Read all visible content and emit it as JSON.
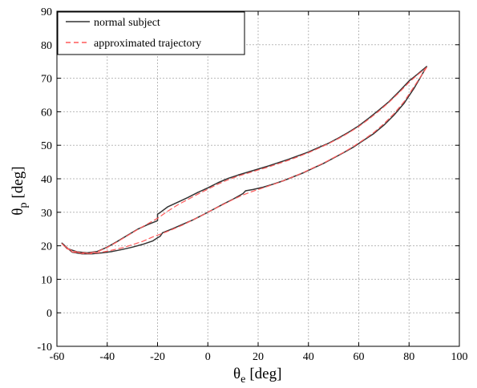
{
  "chart_data": {
    "type": "line",
    "title": "",
    "xlabel": {
      "symbol": "θ",
      "subscript": "e",
      "unit": "[deg]"
    },
    "ylabel": {
      "symbol": "θ",
      "subscript": "p",
      "unit": "[deg]"
    },
    "xlim": [
      -60,
      100
    ],
    "ylim": [
      -10,
      90
    ],
    "xticks": [
      "-60",
      "-40",
      "-20",
      "0",
      "20",
      "40",
      "60",
      "80",
      "100"
    ],
    "yticks": [
      "-10",
      "0",
      "10",
      "20",
      "30",
      "40",
      "50",
      "60",
      "70",
      "80",
      "90"
    ],
    "grid": true,
    "legend_position": "top-left",
    "series": [
      {
        "name": "normal subject",
        "color": "#333333",
        "style": "solid",
        "x": [
          87,
          82,
          78,
          74,
          70,
          66,
          62,
          58,
          54,
          50,
          46,
          42,
          38,
          34,
          30,
          26,
          22,
          18,
          15,
          14,
          10,
          6,
          2,
          -2,
          -6,
          -10,
          -14,
          -18,
          -19,
          -20,
          -22,
          -26,
          -30,
          -34,
          -38,
          -42,
          -46,
          -50,
          -54,
          -58,
          -56,
          -52,
          -48,
          -44,
          -40,
          -36,
          -32,
          -28,
          -24,
          -20,
          -20,
          -19,
          -16,
          -12,
          -8,
          -4,
          0,
          4,
          8,
          12,
          16,
          20,
          24,
          28,
          32,
          36,
          40,
          44,
          48,
          52,
          56,
          60,
          64,
          68,
          72,
          76,
          80,
          83,
          87
        ],
        "y": [
          73.5,
          67,
          62.5,
          59,
          56,
          53.5,
          51.5,
          49.5,
          47.8,
          46.2,
          44.6,
          43.2,
          41.8,
          40.6,
          39.4,
          38.4,
          37.5,
          36.8,
          36.4,
          35.6,
          33.9,
          32.4,
          30.8,
          29.2,
          27.7,
          26.4,
          25.1,
          23.9,
          22.8,
          22.4,
          21.4,
          20.4,
          19.6,
          18.9,
          18.3,
          17.9,
          17.6,
          17.6,
          18.1,
          20.8,
          19.2,
          18.2,
          17.9,
          18.3,
          19.6,
          21.3,
          23.1,
          24.9,
          26.3,
          27.5,
          29.4,
          29.9,
          31.6,
          33.0,
          34.4,
          35.9,
          37.3,
          38.8,
          40.1,
          41.1,
          42.0,
          42.9,
          43.8,
          44.8,
          45.8,
          46.9,
          48.0,
          49.3,
          50.6,
          52.2,
          53.9,
          55.8,
          58.1,
          60.5,
          63.0,
          66.0,
          69.2,
          71.0,
          73.5
        ]
      },
      {
        "name": "approximated trajectory",
        "color": "#ff5a5a",
        "style": "dashed",
        "x": [
          87,
          82,
          78,
          74,
          70,
          66,
          62,
          58,
          54,
          50,
          46,
          42,
          38,
          34,
          30,
          26,
          22,
          18,
          14,
          10,
          6,
          2,
          -2,
          -6,
          -10,
          -14,
          -18,
          -22,
          -26,
          -30,
          -34,
          -38,
          -42,
          -46,
          -50,
          -54,
          -58,
          -56,
          -52,
          -48,
          -44,
          -40,
          -36,
          -32,
          -28,
          -24,
          -20,
          -16,
          -12,
          -8,
          -4,
          0,
          4,
          8,
          12,
          16,
          20,
          24,
          28,
          32,
          36,
          40,
          44,
          48,
          52,
          56,
          60,
          64,
          68,
          72,
          76,
          80,
          83,
          87
        ],
        "y": [
          73.2,
          67.5,
          63.0,
          59.4,
          56.4,
          53.8,
          51.7,
          49.7,
          47.9,
          46.3,
          44.7,
          43.3,
          41.9,
          40.6,
          39.4,
          38.3,
          37.3,
          36.3,
          35.2,
          33.8,
          32.3,
          30.8,
          29.2,
          27.7,
          26.2,
          24.9,
          23.7,
          22.6,
          21.3,
          20.3,
          19.4,
          18.7,
          18.1,
          17.7,
          17.7,
          18.2,
          20.6,
          19.1,
          18.1,
          17.8,
          18.2,
          19.5,
          21.2,
          23.0,
          24.8,
          26.5,
          28.2,
          30.3,
          32.2,
          33.8,
          35.4,
          36.9,
          38.4,
          39.7,
          40.8,
          41.7,
          42.6,
          43.5,
          44.5,
          45.5,
          46.6,
          47.8,
          49.1,
          50.5,
          52.0,
          53.7,
          55.6,
          57.8,
          60.2,
          62.8,
          65.7,
          68.8,
          70.8,
          73.2
        ]
      }
    ]
  }
}
